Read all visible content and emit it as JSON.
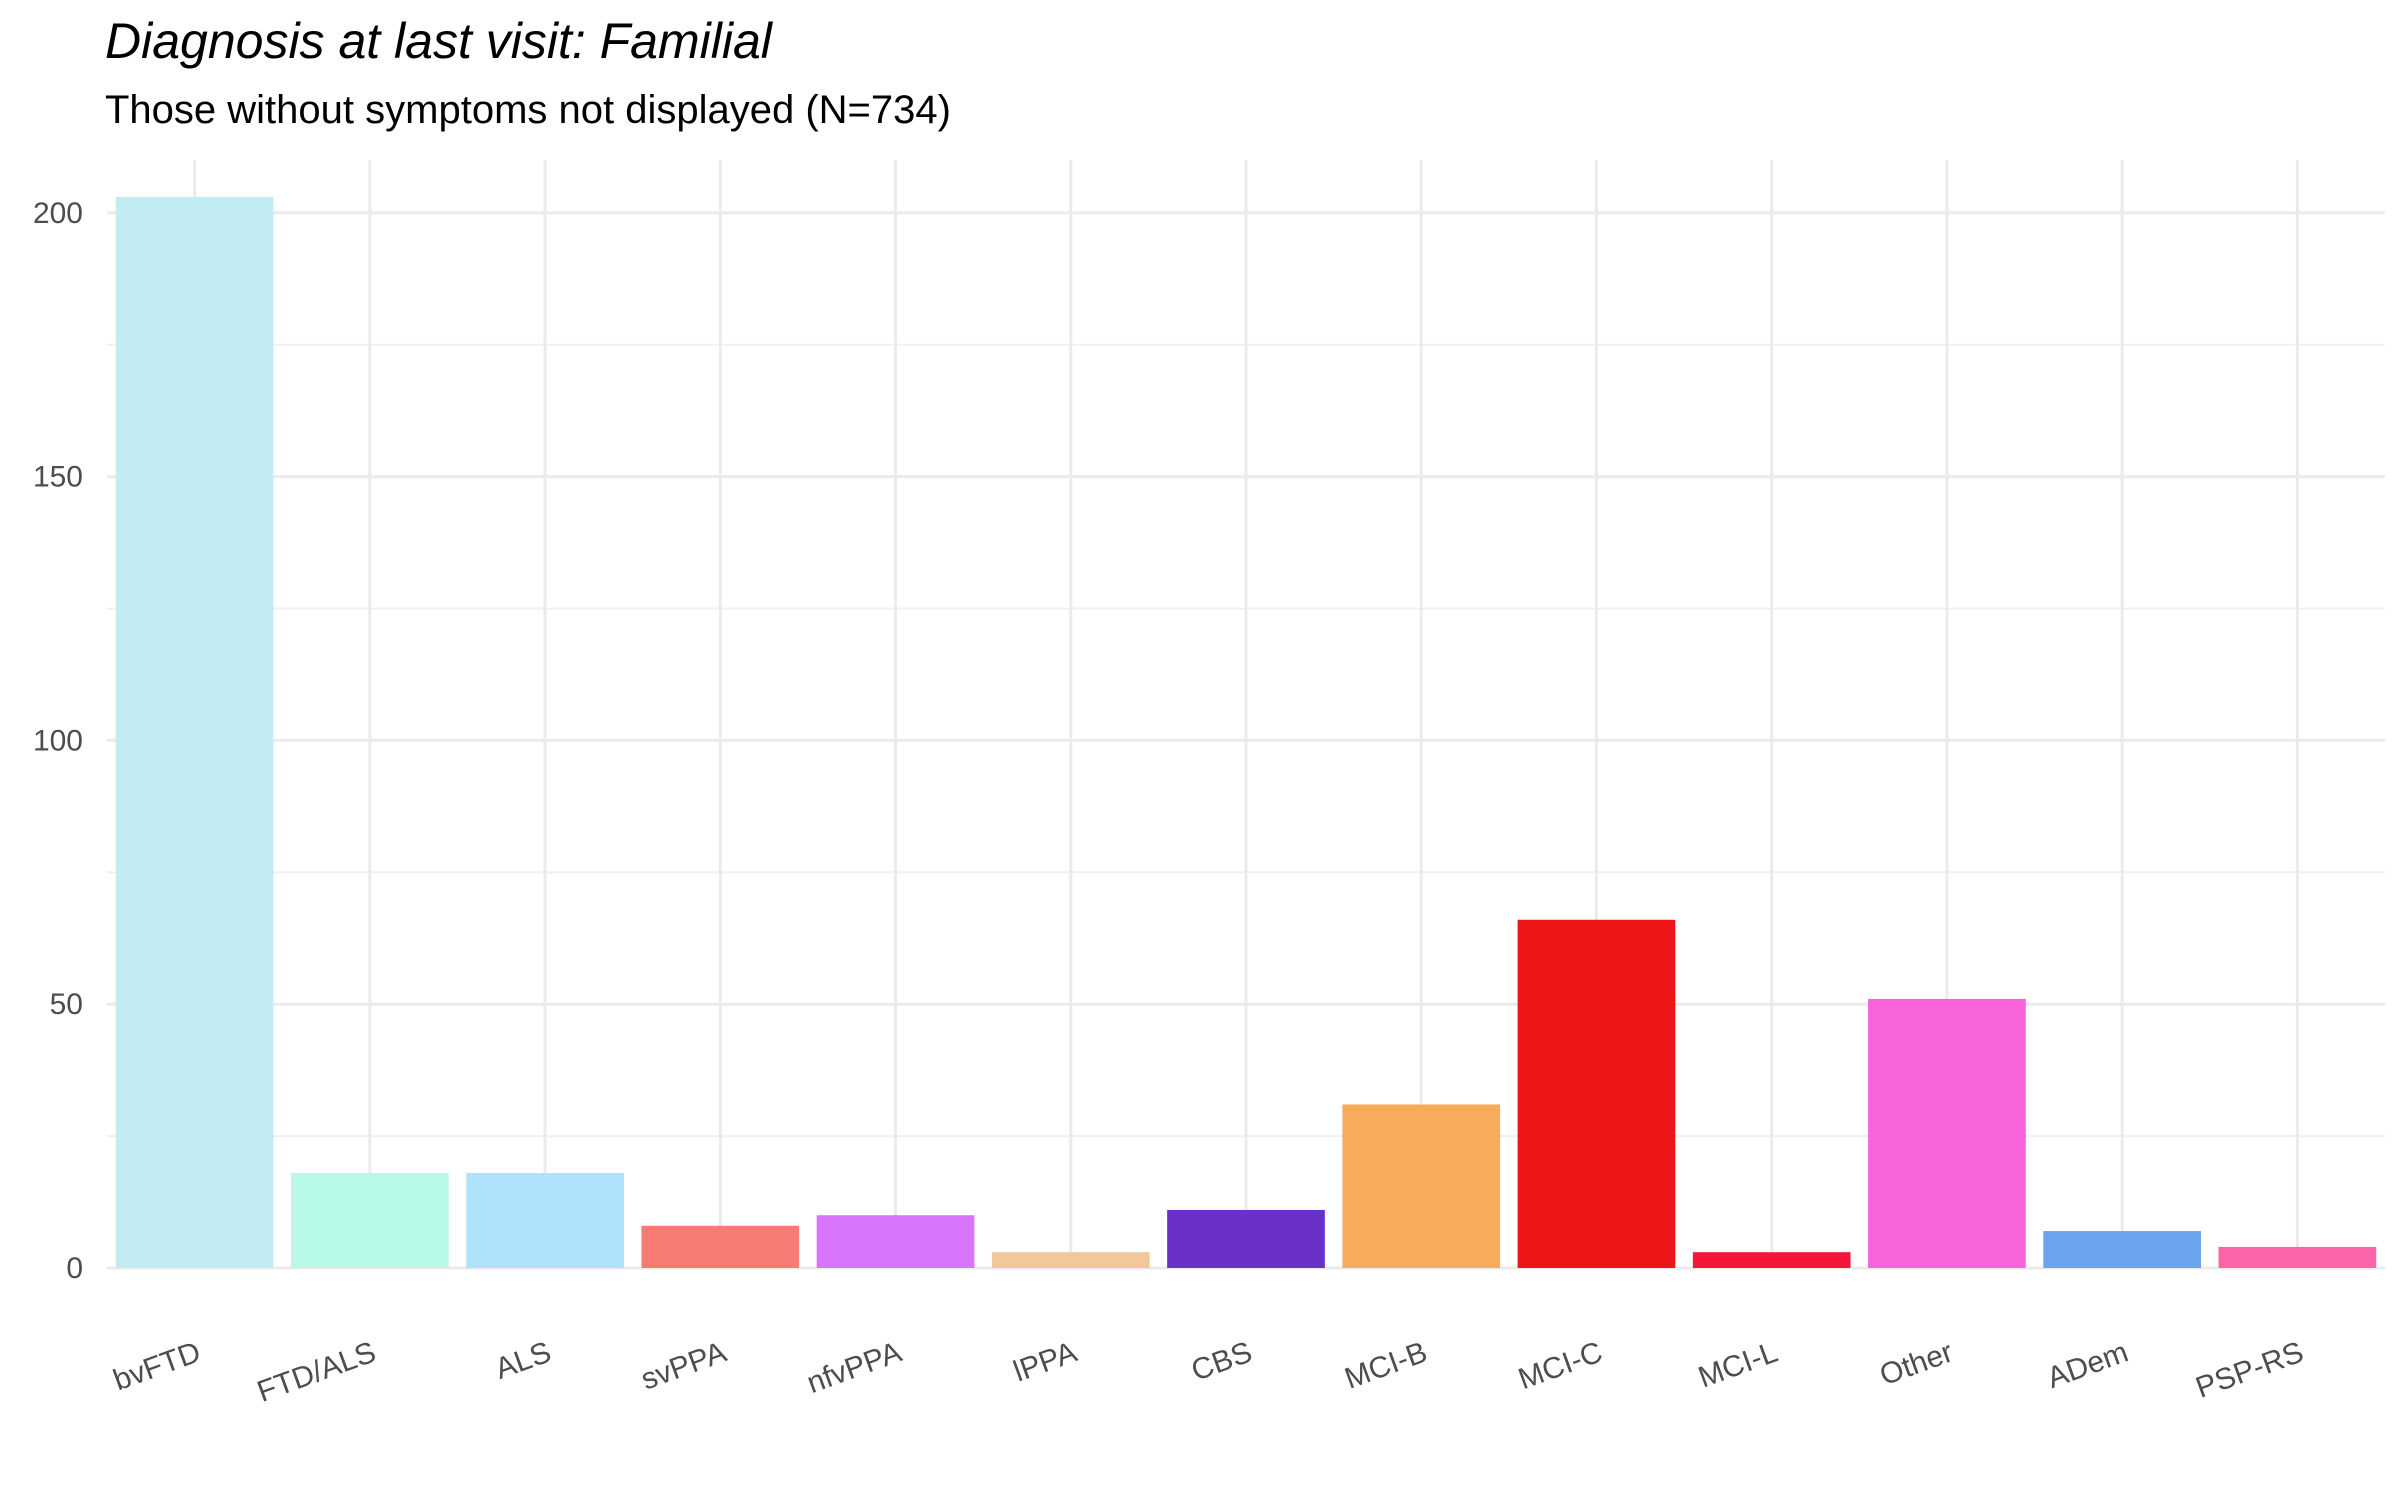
{
  "chart_data": {
    "type": "bar",
    "title": "Diagnosis at last visit: Familial",
    "subtitle": "Those without symptoms not displayed (N=734)",
    "xlabel": "",
    "ylabel": "",
    "categories": [
      "bvFTD",
      "FTD/ALS",
      "ALS",
      "svPPA",
      "nfvPPA",
      "lPPA",
      "CBS",
      "MCI-B",
      "MCI-C",
      "MCI-L",
      "Other",
      "ADem",
      "PSP-RS"
    ],
    "values": [
      203,
      18,
      18,
      8,
      10,
      3,
      11,
      31,
      66,
      3,
      51,
      7,
      4
    ],
    "colors": [
      "#c2ebf2",
      "#b8f8e6",
      "#b1e2fd",
      "#f67b72",
      "#d774fa",
      "#f2c799",
      "#6931c8",
      "#f9ab5c",
      "#ee1516",
      "#f5173a",
      "#f763db",
      "#69a4ec",
      "#fb64a6"
    ],
    "ylim": [
      0,
      210
    ],
    "yticks": [
      0,
      50,
      100,
      150,
      200
    ],
    "grid": true,
    "legend": "none"
  }
}
